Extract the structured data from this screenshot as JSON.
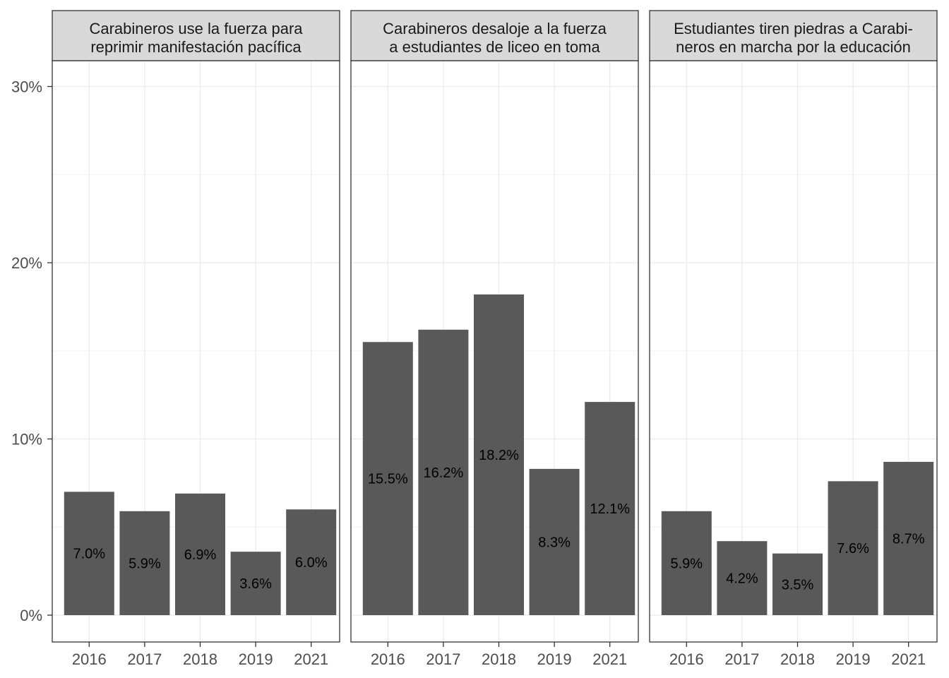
{
  "chart_data": {
    "type": "bar",
    "facet_layout": "1 row, 3 panels, shared y axis",
    "categories": [
      "2016",
      "2017",
      "2018",
      "2019",
      "2021"
    ],
    "y_ticks": [
      "0%",
      "10%",
      "20%",
      "30%"
    ],
    "ylim": [
      -0.015,
      0.315
    ],
    "grid": true,
    "bar_color": "#595959",
    "panels": [
      {
        "title_lines": [
          "Carabineros use la fuerza para",
          "reprimir manifestación pacífica"
        ],
        "values": [
          0.07,
          0.059,
          0.069,
          0.036,
          0.06
        ],
        "labels": [
          "7.0%",
          "5.9%",
          "6.9%",
          "3.6%",
          "6.0%"
        ]
      },
      {
        "title_lines": [
          "Carabineros desaloje a la fuerza",
          "a estudiantes de liceo en toma"
        ],
        "values": [
          0.155,
          0.162,
          0.182,
          0.083,
          0.121
        ],
        "labels": [
          "15.5%",
          "16.2%",
          "18.2%",
          "8.3%",
          "12.1%"
        ]
      },
      {
        "title_lines": [
          "Estudiantes tiren piedras a Carabi-",
          "neros en marcha por la educación"
        ],
        "values": [
          0.059,
          0.042,
          0.035,
          0.076,
          0.087
        ],
        "labels": [
          "5.9%",
          "4.2%",
          "3.5%",
          "7.6%",
          "8.7%"
        ]
      }
    ]
  }
}
